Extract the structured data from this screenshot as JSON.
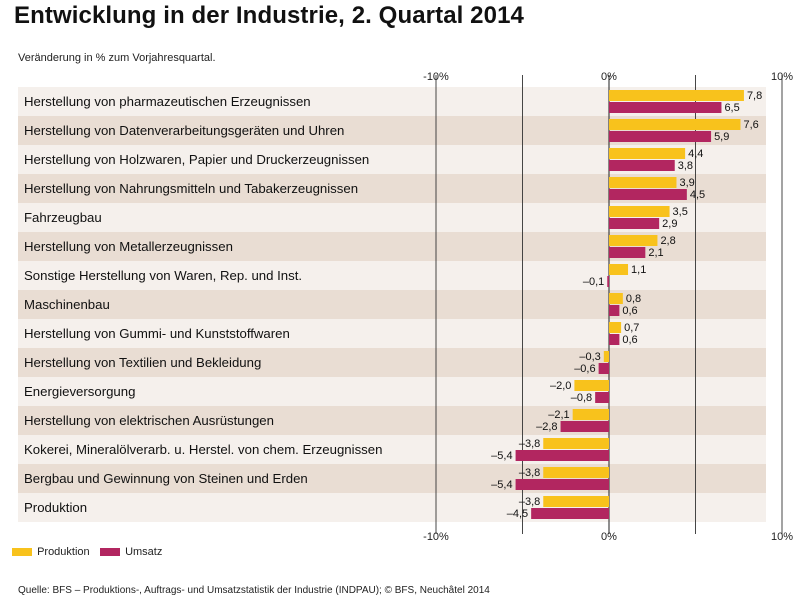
{
  "title": "Entwicklung in der Industrie, 2. Quartal 2014",
  "subtitle": "Veränderung in % zum Vorjahresquartal.",
  "source": "Quelle: BFS – Produktions-, Auftrags- und Umsatzstatistik der Industrie (INDPAU); © BFS, Neuchâtel 2014",
  "colors": {
    "production": "#f8c21c",
    "revenue": "#b22660",
    "row_light": "#f5f0ec",
    "row_dark": "#e9ddd3"
  },
  "chart_data": {
    "type": "bar",
    "orientation": "horizontal",
    "xlim": [
      -10,
      10
    ],
    "ticks": [
      "-10%",
      "0%",
      "10%"
    ],
    "grid": true,
    "legend_position": "bottom-left",
    "categories": [
      "Herstellung von pharmazeutischen Erzeugnissen",
      "Herstellung von Datenverarbeitungsgeräten und Uhren",
      "Herstellung von Holzwaren, Papier und Druckerzeugnissen",
      "Herstellung von Nahrungsmitteln und Tabakerzeugnissen",
      "Fahrzeugbau",
      "Herstellung von Metallerzeugnissen",
      "Sonstige Herstellung von Waren, Rep. und Inst.",
      "Maschinenbau",
      "Herstellung von Gummi- und Kunststoffwaren",
      "Herstellung von Textilien und Bekleidung",
      "Energieversorgung",
      "Herstellung von elektrischen Ausrüstungen",
      "Kokerei, Mineralölverarb. u. Herstel. von chem. Erzeugnissen",
      "Bergbau und Gewinnung von Steinen und Erden",
      "Produktion"
    ],
    "series": [
      {
        "name": "Produktion",
        "values": [
          7.8,
          7.6,
          4.4,
          3.9,
          3.5,
          2.8,
          1.1,
          0.8,
          0.7,
          -0.3,
          -2.0,
          -2.1,
          -3.8,
          -3.8,
          -3.8
        ],
        "labels": [
          "7,8",
          "7,6",
          "4,4",
          "3,9",
          "3,5",
          "2,8",
          "1,1",
          "0,8",
          "0,7",
          "–0,3",
          "–2,0",
          "–2,1",
          "–3,8",
          "–3,8",
          "–3,8"
        ]
      },
      {
        "name": "Umsatz",
        "values": [
          6.5,
          5.9,
          3.8,
          4.5,
          2.9,
          2.1,
          -0.1,
          0.6,
          0.6,
          -0.6,
          -0.8,
          -2.8,
          -5.4,
          -5.4,
          -4.5
        ],
        "labels": [
          "6,5",
          "5,9",
          "3,8",
          "4,5",
          "2,9",
          "2,1",
          "–0,1",
          "0,6",
          "0,6",
          "–0,6",
          "–0,8",
          "–2,8",
          "–5,4",
          "–5,4",
          "–4,5"
        ]
      }
    ]
  }
}
